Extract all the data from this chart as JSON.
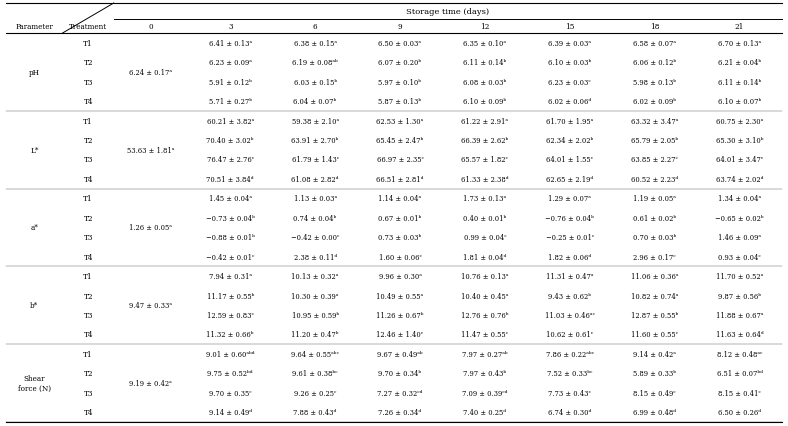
{
  "title": "Storage time (days)",
  "col_header_labels": [
    "Parameter",
    "Treatment",
    "0",
    "3",
    "6",
    "9",
    "12",
    "15",
    "18",
    "21"
  ],
  "table_data": [
    {
      "param": "pH",
      "day0": "6.24 ± 0.17ᵃ",
      "rows": [
        [
          "T1",
          "6.41 ± 0.13ᵃ",
          "6.38 ± 0.15ᵃ",
          "6.50 ± 0.03ᵃ",
          "6.35 ± 0.10ᵃ",
          "6.39 ± 0.03ᵃ",
          "6.58 ± 0.07ᵃ",
          "6.70 ± 0.13ᵃ"
        ],
        [
          "T2",
          "6.23 ± 0.09ᵃ",
          "6.19 ± 0.08ᵃᵇ",
          "6.07 ± 0.20ᵇ",
          "6.11 ± 0.14ᵇ",
          "6.10 ± 0.03ᵇ",
          "6.06 ± 0.12ᵇ",
          "6.21 ± 0.04ᵇ"
        ],
        [
          "T3",
          "5.91 ± 0.12ᵇ",
          "6.03 ± 0.15ᵇ",
          "5.97 ± 0.10ᵇ",
          "6.08 ± 0.03ᵇ",
          "6.23 ± 0.03ᶜ",
          "5.98 ± 0.13ᵇ",
          "6.11 ± 0.14ᵇ"
        ],
        [
          "T4",
          "5.71 ± 0.27ᵇ",
          "6.04 ± 0.07ᵇ",
          "5.87 ± 0.13ᵇ",
          "6.10 ± 0.09ᵇ",
          "6.02 ± 0.06ᵈ",
          "6.02 ± 0.09ᵇ",
          "6.10 ± 0.07ᵇ"
        ]
      ]
    },
    {
      "param": "L*",
      "day0": "53.63 ± 1.81ᵃ",
      "rows": [
        [
          "T1",
          "60.21 ± 3.82ᵃ",
          "59.38 ± 2.10ᵃ",
          "62.53 ± 1.30ᵃ",
          "61.22 ± 2.91ᵃ",
          "61.70 ± 1.95ᵃ",
          "63.32 ± 3.47ᵃ",
          "60.75 ± 2.30ᵃ"
        ],
        [
          "T2",
          "70.40 ± 3.02ᵇ",
          "63.91 ± 2.70ᵇ",
          "65.45 ± 2.47ᵇ",
          "66.39 ± 2.62ᵇ",
          "62.34 ± 2.02ᵇ",
          "65.79 ± 2.05ᵇ",
          "65.30 ± 3.10ᵇ"
        ],
        [
          "T3",
          "76.47 ± 2.76ᶜ",
          "61.79 ± 1.43ᶜ",
          "66.97 ± 2.35ᶜ",
          "65.57 ± 1.82ᶜ",
          "64.01 ± 1.55ᶜ",
          "63.85 ± 2.27ᶜ",
          "64.01 ± 3.47ᶜ"
        ],
        [
          "T4",
          "70.51 ± 3.84ᵈ",
          "61.08 ± 2.82ᵈ",
          "66.51 ± 2.81ᵈ",
          "61.33 ± 2.38ᵈ",
          "62.65 ± 2.19ᵈ",
          "60.52 ± 2.23ᵈ",
          "63.74 ± 2.02ᵈ"
        ]
      ]
    },
    {
      "param": "a*",
      "day0": "1.26 ± 0.05ᵃ",
      "rows": [
        [
          "T1",
          "1.45 ± 0.04ᵃ",
          "1.13 ± 0.03ᵃ",
          "1.14 ± 0.04ᵃ",
          "1.73 ± 0.13ᵃ",
          "1.29 ± 0.07ᵃ",
          "1.19 ± 0.05ᵃ",
          "1.34 ± 0.04ᵃ"
        ],
        [
          "T2",
          "−0.73 ± 0.04ᵇ",
          "0.74 ± 0.04ᵇ",
          "0.67 ± 0.01ᵇ",
          "0.40 ± 0.01ᵇ",
          "−0.76 ± 0.04ᵇ",
          "0.61 ± 0.02ᵇ",
          "−0.65 ± 0.02ᵇ"
        ],
        [
          "T3",
          "−0.88 ± 0.01ᵇ",
          "−0.42 ± 0.00ᶜ",
          "0.73 ± 0.03ᵇ",
          "0.99 ± 0.04ᶜ",
          "−0.25 ± 0.01ᶜ",
          "0.70 ± 0.03ᵇ",
          "1.46 ± 0.09ᵃ"
        ],
        [
          "T4",
          "−0.42 ± 0.01ᶜ",
          "2.38 ± 0.11ᵈ",
          "1.60 ± 0.06ᶜ",
          "1.81 ± 0.04ᵈ",
          "1.82 ± 0.06ᵈ",
          "2.96 ± 0.17ᶜ",
          "0.93 ± 0.04ᶜ"
        ]
      ]
    },
    {
      "param": "b*",
      "day0": "9.47 ± 0.33ᵃ",
      "rows": [
        [
          "T1",
          "7.94 ± 0.31ᵃ",
          "10.13 ± 0.32ᵃ",
          "9.96 ± 0.30ᵃ",
          "10.76 ± 0.13ᵃ",
          "11.31 ± 0.47ᵃ",
          "11.06 ± 0.36ᵃ",
          "11.70 ± 0.52ᵃ"
        ],
        [
          "T2",
          "11.17 ± 0.55ᵇ",
          "10.30 ± 0.39ᵃ",
          "10.49 ± 0.55ᵃ",
          "10.40 ± 0.45ᵃ",
          "9.43 ± 0.62ᵇ",
          "10.82 ± 0.74ᵃ",
          "9.87 ± 0.56ᵇ"
        ],
        [
          "T3",
          "12.59 ± 0.83ᶜ",
          "10.95 ± 0.59ᵇ",
          "11.26 ± 0.67ᵇ",
          "12.76 ± 0.76ᵇ",
          "11.03 ± 0.46ᵃᶜ",
          "12.87 ± 0.55ᵇ",
          "11.88 ± 0.67ᵃ"
        ],
        [
          "T4",
          "11.32 ± 0.66ᵇ",
          "11.20 ± 0.47ᵇ",
          "12.46 ± 1.40ᶜ",
          "11.47 ± 0.55ᶜ",
          "10.62 ± 0.61ᶜ",
          "11.60 ± 0.55ᶜ",
          "11.63 ± 0.64ᵈ"
        ]
      ]
    },
    {
      "param": "Shear\nforce (N)",
      "day0": "9.19 ± 0.42ᵃ",
      "rows": [
        [
          "T1",
          "9.01 ± 0.60ᵃᵇᵈ",
          "9.64 ± 0.55ᵃᵇᶜ",
          "9.67 ± 0.49ᵃᵇ",
          "7.97 ± 0.27ᵃᵇ",
          "7.86 ± 0.22ᵃᵇᶜ",
          "9.14 ± 0.42ᵃ",
          "8.12 ± 0.48ᵃᶜ"
        ],
        [
          "T2",
          "9.75 ± 0.52ᵇᵈ",
          "9.61 ± 0.38ᵇᶜ",
          "9.70 ± 0.34ᵇ",
          "7.97 ± 0.43ᵇ",
          "7.52 ± 0.33ᵇᶜ",
          "5.89 ± 0.33ᵇ",
          "6.51 ± 0.07ᵇᵈ"
        ],
        [
          "T3",
          "9.70 ± 0.35ᶜ",
          "9.26 ± 0.25ᶜ",
          "7.27 ± 0.32ᶜᵈ",
          "7.09 ± 0.39ᶜᵈ",
          "7.73 ± 0.43ᶜ",
          "8.15 ± 0.49ᶜ",
          "8.15 ± 0.41ᶜ"
        ],
        [
          "T4",
          "9.14 ± 0.49ᵈ",
          "7.88 ± 0.43ᵈ",
          "7.26 ± 0.34ᵈ",
          "7.40 ± 0.25ᵈ",
          "6.74 ± 0.30ᵈ",
          "6.99 ± 0.48ᵈ",
          "6.50 ± 0.26ᵈ"
        ]
      ]
    }
  ],
  "bg_color": "#ffffff",
  "text_color": "#000000",
  "line_color": "#000000",
  "font_size": 5.2,
  "header_font_size": 6.0
}
